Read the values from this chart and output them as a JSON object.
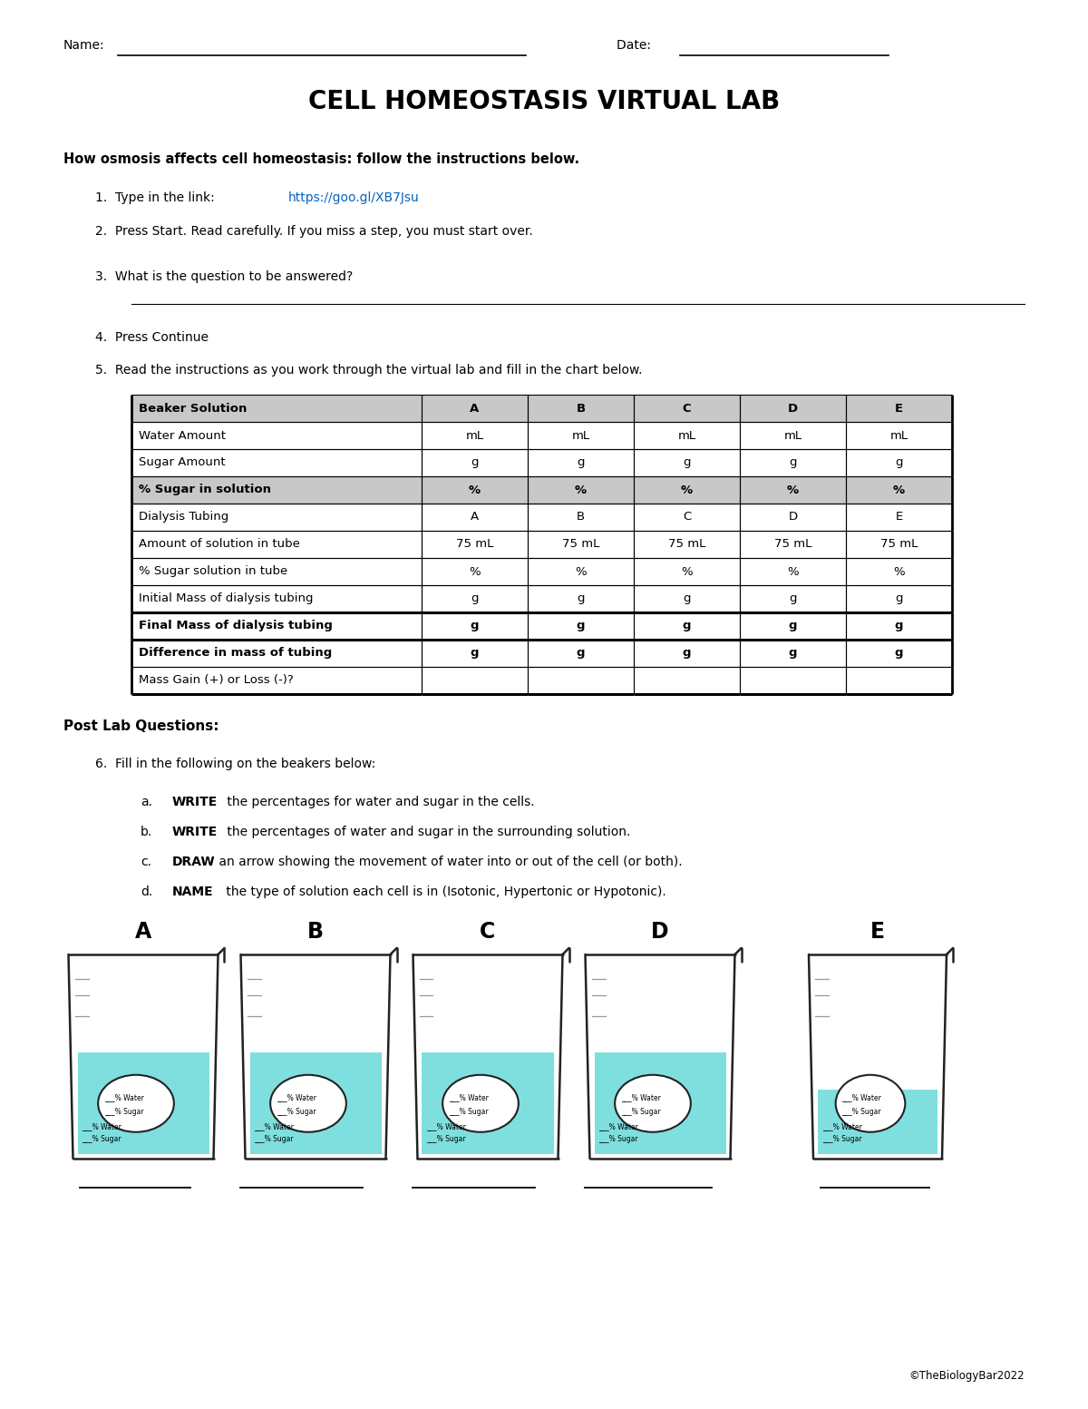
{
  "title": "CELL HOMEOSTASIS VIRTUAL LAB",
  "name_label": "Name:",
  "date_label": "Date: ",
  "subtitle": "How osmosis affects cell homeostasis: follow the instructions below.",
  "step4": "Press Continue",
  "step5": "Read the instructions as you work through the virtual lab and fill in the chart below.",
  "link_text": "https://goo.gl/XB7Jsu",
  "table_headers_row1": [
    "Beaker Solution",
    "A",
    "B",
    "C",
    "D",
    "E"
  ],
  "table_rows": [
    [
      "Water Amount",
      "mL",
      "mL",
      "mL",
      "mL",
      "mL"
    ],
    [
      "Sugar Amount",
      "g",
      "g",
      "g",
      "g",
      "g"
    ],
    [
      "% Sugar in solution",
      "%",
      "%",
      "%",
      "%",
      "%"
    ],
    [
      "Dialysis Tubing",
      "A",
      "B",
      "C",
      "D",
      "E"
    ],
    [
      "Amount of solution in tube",
      "75 mL",
      "75 mL",
      "75 mL",
      "75 mL",
      "75 mL"
    ],
    [
      "% Sugar solution in tube",
      "%",
      "%",
      "%",
      "%",
      "%"
    ],
    [
      "Initial Mass of dialysis tubing",
      "g",
      "g",
      "g",
      "g",
      "g"
    ],
    [
      "Final Mass of dialysis tubing",
      "g",
      "g",
      "g",
      "g",
      "g"
    ],
    [
      "Difference in mass of tubing",
      "g",
      "g",
      "g",
      "g",
      "g"
    ],
    [
      "Mass Gain (+) or Loss (-)?",
      "",
      "",
      "",
      "",
      ""
    ]
  ],
  "bold_rows": [
    0,
    3,
    8,
    9
  ],
  "shaded_rows": [
    0,
    3
  ],
  "thick_border_rows": [
    8,
    9
  ],
  "post_lab": "Post Lab Questions:",
  "question6": "Fill in the following on the beakers below:",
  "sub_q_labels": [
    "a.",
    "b.",
    "c.",
    "d."
  ],
  "sub_bold": [
    "WRITE",
    "WRITE",
    "DRAW",
    "NAME"
  ],
  "sub_rest": [
    " the percentages for water and sugar in the cells.",
    " the percentages of water and sugar in the surrounding solution.",
    " an arrow showing the movement of water into or out of the cell (or both).",
    " the type of solution each cell is in (Isotonic, Hypertonic or Hypotonic)."
  ],
  "beaker_labels": [
    "A",
    "B",
    "C",
    "D",
    "E"
  ],
  "beaker_color": "#7FDFDF",
  "beaker_outline": "#222222",
  "link_color": "#0563C1",
  "copyright": "©TheBiologyBar2022",
  "bg_color": "#FFFFFF",
  "text_color": "#000000",
  "table_shade": "#C8C8C8",
  "table_border": "#000000"
}
